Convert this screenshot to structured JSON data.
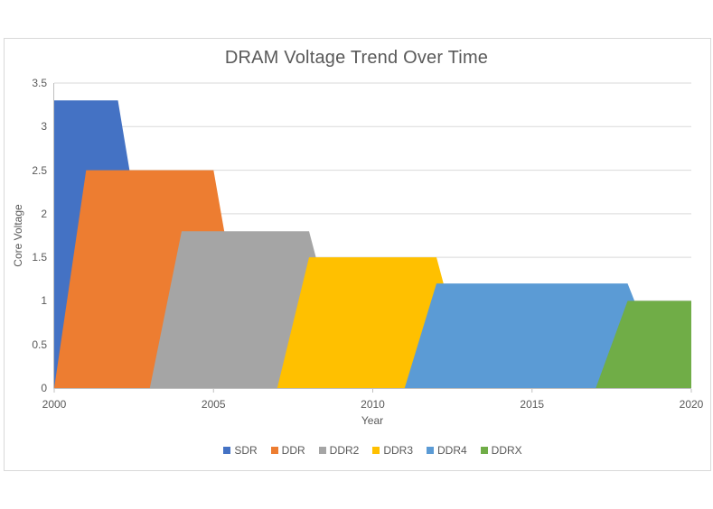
{
  "window": {
    "background": "#ffffff"
  },
  "chart_data": {
    "type": "area",
    "title": "DRAM Voltage Trend Over Time",
    "xlabel": "Year",
    "ylabel": "Core Voltage",
    "xlim": [
      2000,
      2020
    ],
    "ylim": [
      0,
      3.5
    ],
    "x_tick_values": [
      2000,
      2005,
      2010,
      2015,
      2020
    ],
    "x_tick_labels": [
      "2000",
      "2005",
      "2010",
      "2015",
      "2020"
    ],
    "y_tick_values": [
      0,
      0.5,
      1,
      1.5,
      2,
      2.5,
      3,
      3.5
    ],
    "y_tick_labels": [
      "0",
      "0.5",
      "1",
      "1.5",
      "2",
      "2.5",
      "3",
      "3.5"
    ],
    "grid": "horizontal",
    "legend_position": "bottom",
    "series": [
      {
        "name": "SDR",
        "color": "#4472C4",
        "voltage": 3.3,
        "plateau_years": [
          2000,
          2002
        ],
        "points": [
          [
            2000,
            0
          ],
          [
            2000,
            3.3
          ],
          [
            2002,
            3.3
          ],
          [
            2003.5,
            0
          ]
        ]
      },
      {
        "name": "DDR",
        "color": "#ED7D31",
        "voltage": 2.5,
        "plateau_years": [
          2001,
          2005
        ],
        "points": [
          [
            2000,
            0
          ],
          [
            2001,
            2.5
          ],
          [
            2005,
            2.5
          ],
          [
            2006.2,
            0
          ]
        ]
      },
      {
        "name": "DDR2",
        "color": "#A5A5A5",
        "voltage": 1.8,
        "plateau_years": [
          2004,
          2008
        ],
        "points": [
          [
            2003,
            0
          ],
          [
            2004,
            1.8
          ],
          [
            2008,
            1.8
          ],
          [
            2009.3,
            0
          ]
        ]
      },
      {
        "name": "DDR3",
        "color": "#FFC000",
        "voltage": 1.5,
        "plateau_years": [
          2008,
          2012
        ],
        "points": [
          [
            2007,
            0
          ],
          [
            2008,
            1.5
          ],
          [
            2012,
            1.5
          ],
          [
            2013.1,
            0
          ]
        ]
      },
      {
        "name": "DDR4",
        "color": "#5B9BD5",
        "voltage": 1.2,
        "plateau_years": [
          2012,
          2018
        ],
        "points": [
          [
            2011,
            0
          ],
          [
            2012,
            1.2
          ],
          [
            2018,
            1.2
          ],
          [
            2019.3,
            0
          ]
        ]
      },
      {
        "name": "DDRX",
        "color": "#70AD47",
        "voltage": 1.0,
        "plateau_years": [
          2018,
          2020
        ],
        "points": [
          [
            2017,
            0
          ],
          [
            2018,
            1.0
          ],
          [
            2020,
            1.0
          ],
          [
            2020,
            0
          ]
        ]
      }
    ],
    "colors": {
      "text": "#595959",
      "gridline": "#D9D9D9",
      "axis_line": "#BFBFBF",
      "frame_border": "#D9D9D9"
    }
  }
}
